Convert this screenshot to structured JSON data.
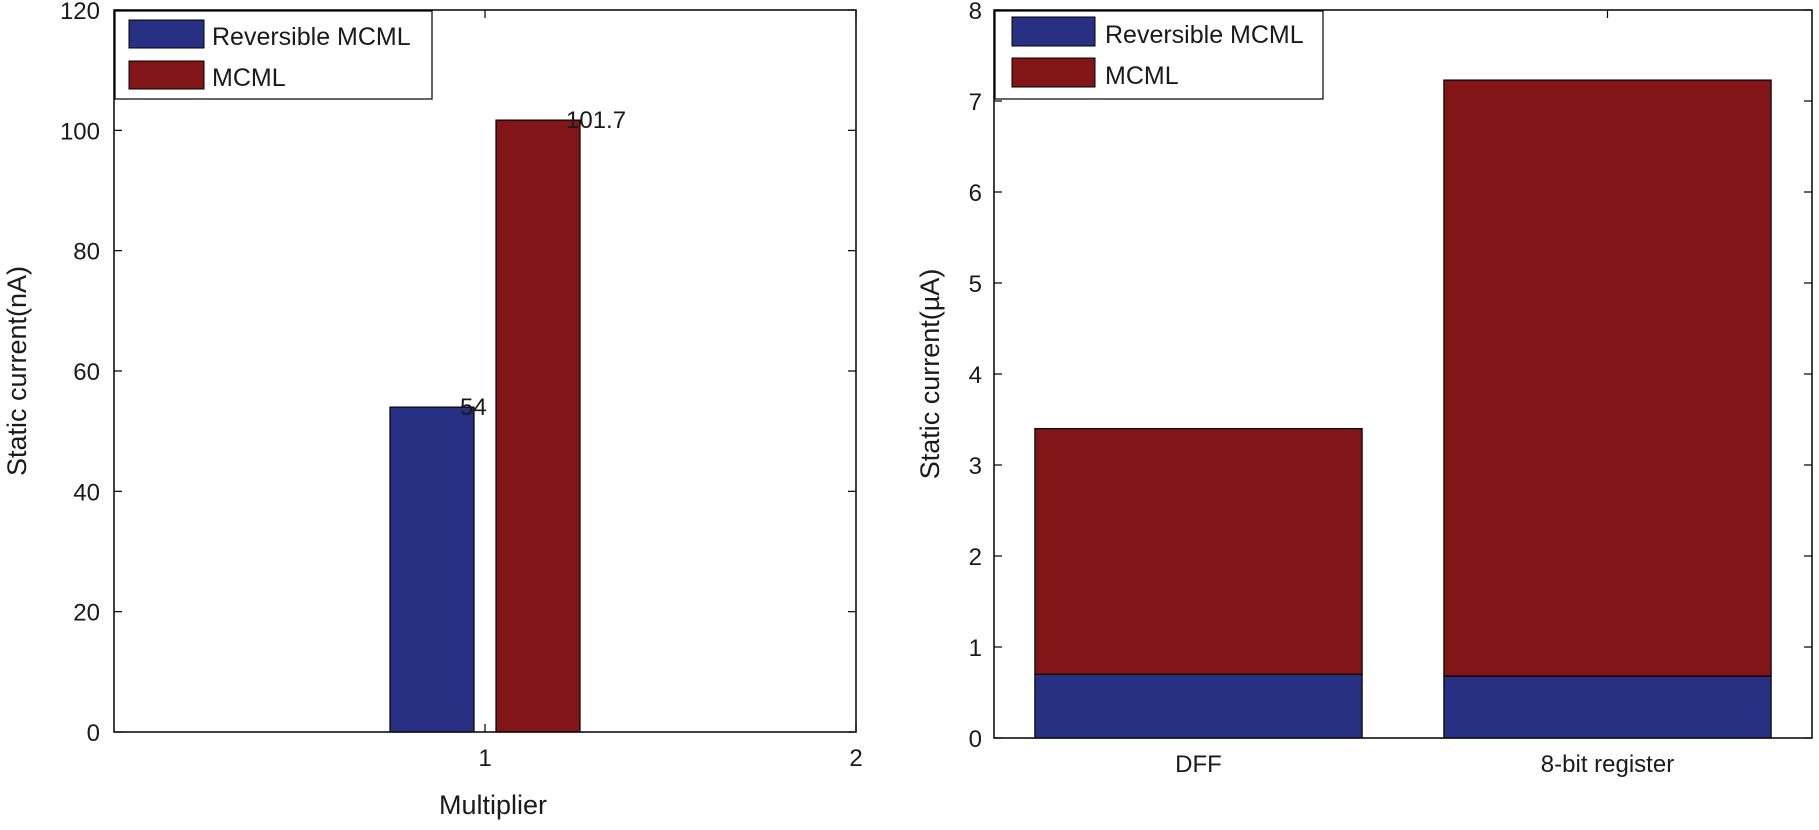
{
  "colors": {
    "reversible": "#283084",
    "mcml": "#821518",
    "axis": "#000000",
    "background": "#ffffff"
  },
  "chart_data": [
    {
      "type": "bar",
      "title": "",
      "xlabel": "Multiplier",
      "ylabel": "Static current(nA)",
      "xlim": [
        0,
        2
      ],
      "ylim": [
        0,
        120
      ],
      "x_ticks": [
        "1",
        "2"
      ],
      "y_ticks": [
        "0",
        "20",
        "40",
        "60",
        "80",
        "100",
        "120"
      ],
      "categories": [
        "1"
      ],
      "series": [
        {
          "name": "Reversible MCML",
          "values": [
            54
          ],
          "label": "54"
        },
        {
          "name": "MCML",
          "values": [
            101.7
          ],
          "label": "101.7"
        }
      ],
      "legend": {
        "position": "top-left",
        "entries": [
          "Reversible MCML",
          "MCML"
        ]
      }
    },
    {
      "type": "bar",
      "stacked": true,
      "title": "",
      "xlabel": "",
      "ylabel": "Static current(µA)",
      "ylim": [
        0,
        8
      ],
      "y_ticks": [
        "0",
        "1",
        "2",
        "3",
        "4",
        "5",
        "6",
        "7",
        "8"
      ],
      "categories": [
        "DFF",
        "8-bit register"
      ],
      "series": [
        {
          "name": "Reversible MCML",
          "values": [
            0.7,
            0.68
          ]
        },
        {
          "name": "MCML",
          "values": [
            2.7,
            6.55
          ]
        }
      ],
      "legend": {
        "position": "top-left",
        "entries": [
          "Reversible MCML",
          "MCML"
        ]
      }
    }
  ]
}
